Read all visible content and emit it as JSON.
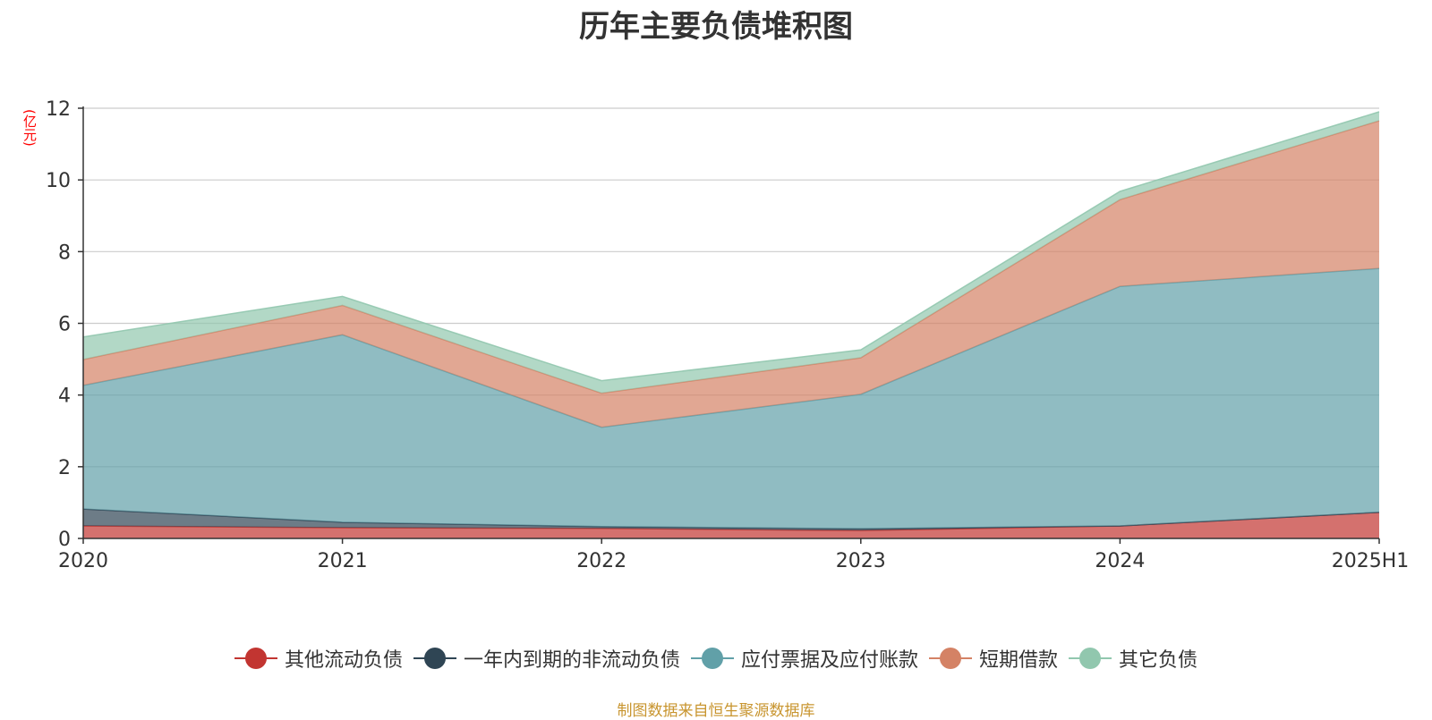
{
  "chart_data": {
    "type": "area",
    "stacked": true,
    "title": "历年主要负债堆积图",
    "unit_label": "(亿元)",
    "categories": [
      "2020",
      "2021",
      "2022",
      "2023",
      "2024",
      "2025H1"
    ],
    "ylim": [
      0,
      12
    ],
    "yticks": [
      0,
      2,
      4,
      6,
      8,
      10,
      12
    ],
    "grid": true,
    "legend_position": "bottom",
    "series": [
      {
        "name": "其他流动负债",
        "color": "#c23531",
        "values": [
          0.35,
          0.3,
          0.28,
          0.22,
          0.35,
          0.73
        ]
      },
      {
        "name": "一年内到期的非流动负债",
        "color": "#2f4554",
        "values": [
          0.47,
          0.15,
          0.05,
          0.05,
          0.0,
          0.0
        ]
      },
      {
        "name": "应付票据及应付账款",
        "color": "#61a0a8",
        "values": [
          3.45,
          5.23,
          2.77,
          3.75,
          6.68,
          6.8
        ]
      },
      {
        "name": "短期借款",
        "color": "#d48265",
        "values": [
          0.72,
          0.82,
          0.95,
          1.02,
          2.42,
          4.12
        ]
      },
      {
        "name": "其它负债",
        "color": "#91c7ae",
        "values": [
          0.63,
          0.25,
          0.35,
          0.22,
          0.23,
          0.25
        ]
      }
    ],
    "source": "制图数据来自恒生聚源数据库"
  }
}
